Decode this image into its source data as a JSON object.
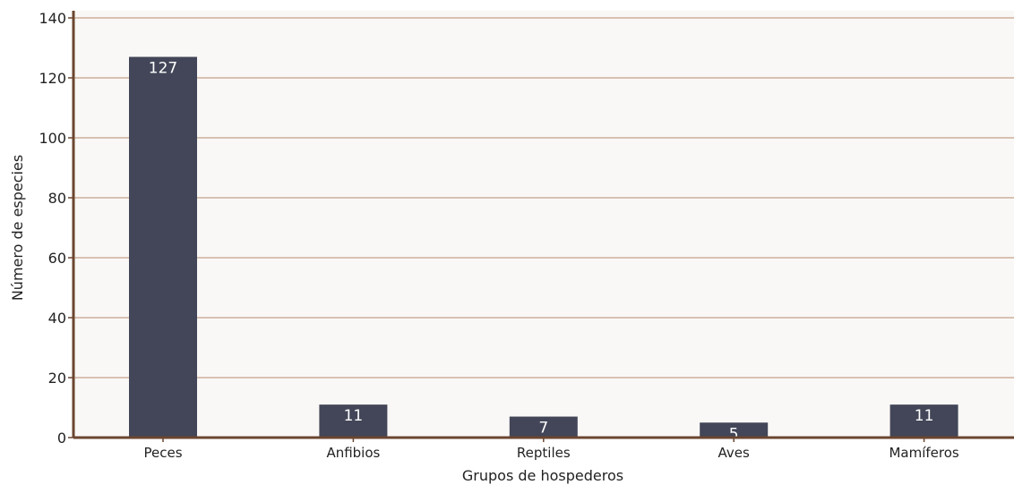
{
  "chart_data": {
    "type": "bar",
    "title": "",
    "xlabel": "Grupos de hospederos",
    "ylabel": "Número de especies",
    "categories": [
      "Peces",
      "Anfibios",
      "Reptiles",
      "Aves",
      "Mamíferos"
    ],
    "values": [
      127,
      11,
      7,
      5,
      11
    ],
    "data_labels": [
      "127",
      "11",
      "7",
      "5",
      "11"
    ],
    "ylim": [
      0,
      140
    ],
    "yticks": [
      0,
      20,
      40,
      60,
      80,
      100,
      120,
      140
    ],
    "grid": true,
    "legend": "none",
    "colors": {
      "bar": "#424658",
      "plot_background": "#faf8f6",
      "gridline": "#b58a6e",
      "axis": "#6b4630",
      "data_label": "#ffffff"
    }
  }
}
